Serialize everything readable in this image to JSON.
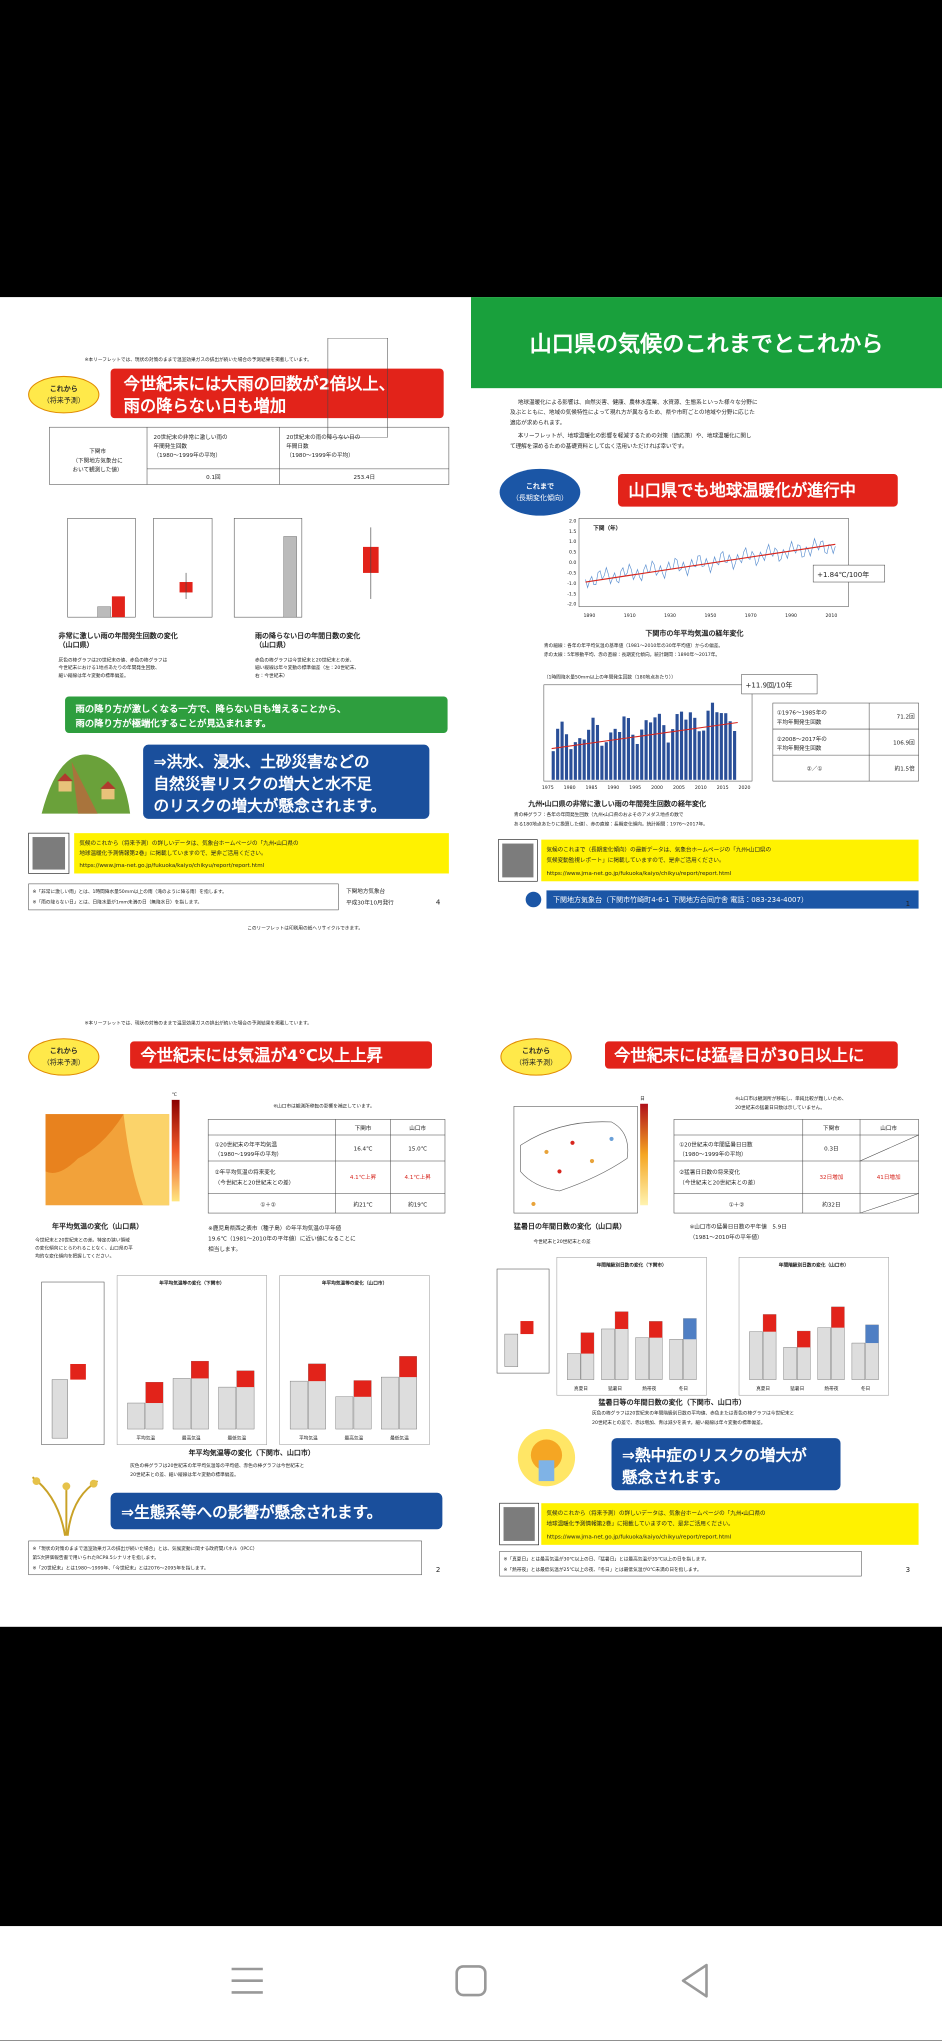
{
  "page4": {
    "note": "※本リーフレットでは、現状の対策のままで温室効果ガスの排出が続いた場合の予測結果を掲載しています。",
    "badge": [
      "これから",
      "（将来予測）"
    ],
    "headline": [
      "今世紀末には大雨の回数が2倍以上、",
      "雨の降らない日も増加"
    ],
    "table": {
      "row_header": [
        "下関市",
        "（下関地方気象台に",
        "おいて観測した値）"
      ],
      "col1": [
        "20世紀末の非常に激しい雨の",
        "年間発生回数",
        "（1980～1999年の平均）"
      ],
      "col2": [
        "20世紀末の雨の降らない日の",
        "年間日数",
        "（1980～1999年の平均）"
      ],
      "val1": "0.1回",
      "val2": "253.4日"
    },
    "chart1_caption": [
      "非常に激しい雨の年間発生回数の変化",
      "（山口県）"
    ],
    "chart1_note": [
      "灰色の棒グラフは20世紀末の値、赤色の棒グラフは",
      "今世紀末における1地点あたりの年間発生回数、",
      "細い縦線は年々変動の標準偏差。"
    ],
    "chart2_caption": [
      "雨の降らない日の年間日数の変化",
      "（山口県）"
    ],
    "chart2_note": [
      "赤色の棒グラフは今世紀末と20世紀末との差、",
      "細い縦線は年々変動の標準偏差（左：20世紀末、",
      "右：今世紀末）"
    ],
    "green_box": [
      "雨の降り方が激しくなる一方で、降らない日も増えることから、",
      "雨の降り方が極端化することが見込まれます。"
    ],
    "blue_box": [
      "⇒洪水、浸水、土砂災害などの",
      "自然災害リスクの増大と水不足",
      "のリスクの増大が懸念されます。"
    ],
    "info": [
      "気候のこれから（将来予測）の詳しいデータは、気象台ホームページの「九州・山口県の",
      "地球温暖化予測情報第2巻」に掲載していますので、是非ご活用ください。",
      "https://www.jma-net.go.jp/fukuoka/kaiyo/chikyu/report/report.html"
    ],
    "footnotes": [
      "※「非常に激しい雨」とは、1時間降水量50mm以上の雨（滝のように降る雨）を指します。",
      "※「雨の降らない日」とは、日降水量が1mm未満の日（無降水日）を指します。"
    ],
    "issuer": [
      "下関地方気象台",
      "平成30年10月発行"
    ],
    "page": "4",
    "recycle": "このリーフレットは印刷用の紙へリサイクルできます。"
  },
  "page1": {
    "title": "山口県の気候のこれまでとこれから",
    "intro": [
      "地球温暖化による影響は、自然災害、健康、農林水産業、水資源、生態系といった様々な分野に",
      "及ぶとともに、地域の気候特性によって現れ方が異なるため、県や市町ごとの地域や分野に応じた",
      "適応が求められます。",
      "本リーフレットが、地球温暖化の影響を軽減するための対策（適応策）や、地球温暖化に関し",
      "て理解を深めるための基礎資料として広く活用いただければ幸いです。"
    ],
    "badge": [
      "これまで",
      "（長期変化傾向）"
    ],
    "headline": "山口県でも地球温暖化が進行中",
    "chart1_label": "下関（年）",
    "chart1_yticks": [
      "2.0",
      "1.5",
      "1.0",
      "0.5",
      "0.0",
      "-0.5",
      "-1.0",
      "-1.5",
      "-2.0"
    ],
    "chart1_xticks": [
      "1890",
      "1910",
      "1930",
      "1950",
      "1970",
      "1990",
      "2010"
    ],
    "chart1_trend": "+1.84℃/100年",
    "chart1_caption": "下関市の年平均気温の経年変化",
    "chart1_note": [
      "青の細線：各年の年平均気温の基準値（1981～2010年の30年平均値）からの偏差。",
      "赤の太線：5年移動平均、赤の直線：長期変化傾向。統計期間：1890年～2017年。"
    ],
    "chart2_label": "（1時間降水量50mm以上の年間発生回数（180地点あたり））",
    "chart2_xticks": [
      "1975",
      "1980",
      "1985",
      "1990",
      "1995",
      "2000",
      "2005",
      "2010",
      "2015",
      "2020"
    ],
    "chart2_trend": "+11.9回/10年",
    "table": [
      [
        "①1976～1985年の",
        "平均年間発生回数",
        "71.2回"
      ],
      [
        "②2008～2017年の",
        "平均年間発生回数",
        "106.9回"
      ],
      [
        "②／①",
        "",
        "約1.5倍"
      ]
    ],
    "chart2_caption": "九州・山口県の非常に激しい雨の年間発生回数の経年変化",
    "chart2_note": [
      "青の棒グラフ：各年の年間発生回数（九州・山口県のおよそのアメダス地点の数で",
      "ある180地点あたりに換算した値）、赤の直線：長期変化傾向。統計期間：1976～2017年。"
    ],
    "info": [
      "気候のこれまで（長期変化傾向）の最新データは、気象台ホームページの「九州・山口県の",
      "気候変動監視レポート」に掲載していますので、是非ご活用ください。",
      "https://www.jma-net.go.jp/fukuoka/kaiyo/chikyu/report/report.html"
    ],
    "footer": "下関地方気象台（下関市竹崎町4-6-1 下関地方合同庁舎 電話：083-234-4007）",
    "page": "1"
  },
  "page2": {
    "note": "※本リーフレットでは、現状の対策のままで温室効果ガスの排出が続いた場合の予測結果を掲載しています。",
    "badge": [
      "これから",
      "（将来予測）"
    ],
    "headline": "今世紀末には気温が4℃以上上昇",
    "map_unit": "℃",
    "map_note": "※山口市は観測所移転の影響を補正しています。",
    "table": {
      "header": [
        "下関市",
        "山口市"
      ],
      "rows": [
        [
          [
            "①20世紀末の年平均気温",
            "（1980～1999年の平均）"
          ],
          "16.4℃",
          "15.0℃"
        ],
        [
          [
            "②年平均気温の将来変化",
            "（今世紀末と20世紀末との差）"
          ],
          "4.1℃上昇",
          "4.1℃上昇"
        ],
        [
          [
            "①＋②"
          ],
          "約21℃",
          "約19℃"
        ]
      ]
    },
    "map_caption": "年平均気温の変化（山口県）",
    "map_text": [
      "今世紀末と20世紀末との差。特定の狭い領域",
      "の変化傾向にとらわれることなく、山口県の平",
      "均的な変化傾向を把握してください。"
    ],
    "compare": [
      "※鹿児島県西之表市（種子島）の年平均気温の平年値",
      "19.6℃（1981～2010年の平年値）に近い値になることに",
      "相当します。"
    ],
    "chart_titles": [
      "年平均気温等の変化（下関市）",
      "年平均気温等の変化（山口市）"
    ],
    "chart_categories": [
      "平均気温",
      "最高気温",
      "最低気温"
    ],
    "chart_caption": "年平均気温等の変化（下関市、山口市）",
    "chart_note": [
      "灰色の棒グラフは20世紀末の年平均気温等の平均値、赤色の棒グラフは今世紀末と",
      "20世紀末との差、細い縦線は年々変動の標準偏差。"
    ],
    "blue_box": "⇒生態系等への影響が懸念されます。",
    "footnotes": [
      "※「現状の対策のままで温室効果ガスの排出が続いた場合」とは、気候変動に関する政府間パネル（IPCC）",
      "第5次評価報告書で用いられたRCP8.5シナリオを指します。",
      "※「20世紀末」とは1980～1999年、「今世紀末」とは2076～2095年を指します。"
    ],
    "page": "2"
  },
  "page3": {
    "badge": [
      "これから",
      "（将来予測）"
    ],
    "headline": "今世紀末には猛暑日が30日以上に",
    "map_unit": "日",
    "map_note": [
      "※山口市は観測所が移転し、単純比較が難しいため、",
      "20世紀末の猛暑日日数は示していません。"
    ],
    "table": {
      "header": [
        "下関市",
        "山口市"
      ],
      "rows": [
        [
          [
            "①20世紀末の年間猛暑日日数",
            "（1980～1999年の平均）"
          ],
          "0.3日",
          ""
        ],
        [
          [
            "②猛暑日日数の将来変化",
            "（今世紀末と20世紀末との差）"
          ],
          "32日増加",
          "41日増加"
        ],
        [
          [
            "①＋②"
          ],
          "約32日",
          ""
        ]
      ]
    },
    "map_caption": "猛暑日の年間日数の変化（山口県）",
    "map_text": "今世紀末と20世紀末との差",
    "compare": [
      "※山口市の猛暑日日数の平年値　5.9日",
      "（1981～2010年の平年値）"
    ],
    "chart_titles": [
      "年間階級別日数の変化（下関市）",
      "年間階級別日数の変化（山口市）"
    ],
    "chart_categories": [
      "真夏日",
      "猛暑日",
      "熱帯夜",
      "冬日"
    ],
    "chart_caption": "猛暑日等の年間日数の変化（下関市、山口市）",
    "chart_note": [
      "灰色の棒グラフは20世紀末の年間階級別日数の平均値、赤色または青色の棒グラフは今世紀末と",
      "20世紀末との差で、赤は増加、青は減少を表す。細い縦線は年々変動の標準偏差。"
    ],
    "blue_box": [
      "⇒熱中症のリスクの増大が",
      "懸念されます。"
    ],
    "info": [
      "気候のこれから（将来予測）の詳しいデータは、気象台ホームページの「九州・山口県の",
      "地球温暖化予測情報第2巻」に掲載していますので、是非ご活用ください。",
      "https://www.jma-net.go.jp/fukuoka/kaiyo/chikyu/report/report.html"
    ],
    "footnotes": [
      "※「真夏日」とは最高気温が30℃以上の日、「猛暑日」とは最高気温が35℃以上の日を指します。",
      "※「熱帯夜」とは最低気温が25℃以上の夜、「冬日」とは最低気温が0℃未満の日を指します。"
    ],
    "page": "3"
  }
}
